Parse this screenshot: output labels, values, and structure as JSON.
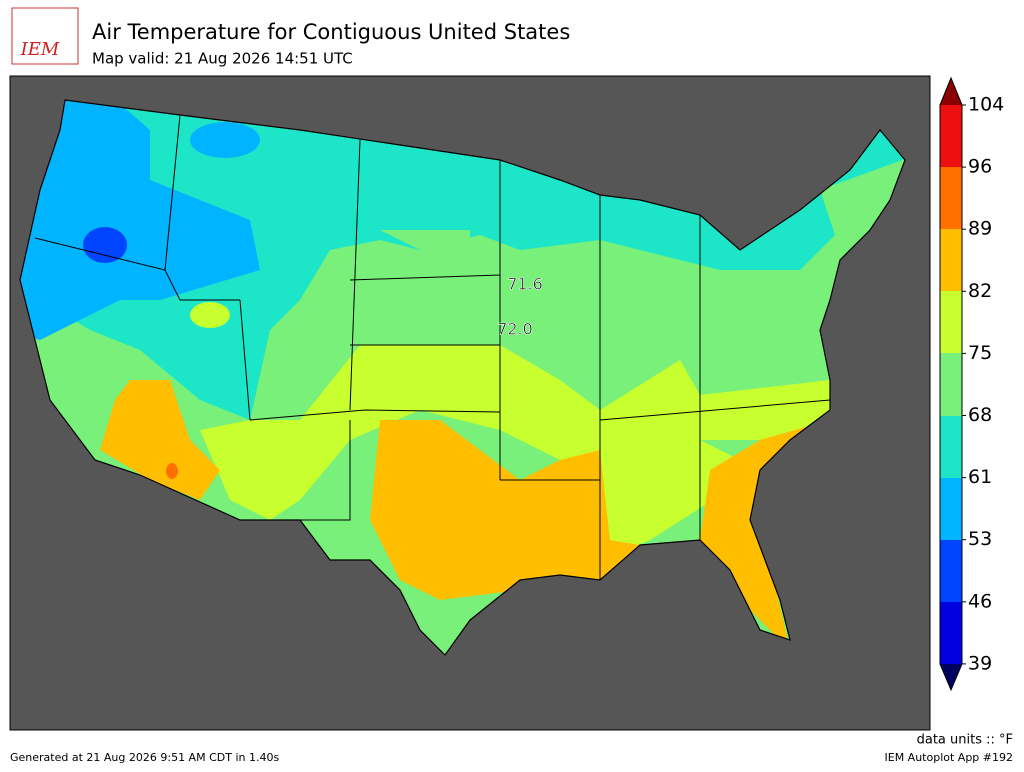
{
  "header": {
    "logo": "IEM",
    "title": "Air Temperature for Contiguous United States",
    "subtitle": "Map valid: 21 Aug 2026 14:51 UTC"
  },
  "map": {
    "station_labels": [
      "71.6",
      "72.0"
    ]
  },
  "colorbar": {
    "labels": [
      104,
      96,
      89,
      82,
      75,
      68,
      61,
      53,
      46,
      39
    ],
    "units": "data units :: °F"
  },
  "footer": {
    "generated": "Generated at 21 Aug 2026 9:51 AM CDT in 1.40s",
    "app": "IEM Autoplot App #192"
  }
}
